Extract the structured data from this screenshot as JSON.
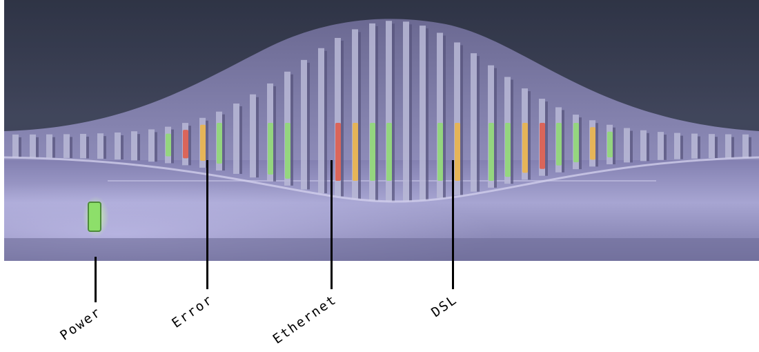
{
  "callouts": {
    "power": "Power",
    "error": "Error",
    "ethernet": "Ethernet",
    "dsl": "DSL"
  },
  "colors": {
    "led_green": "#8ddf6a",
    "led_amber": "#f2b53a",
    "led_red": "#e5533c",
    "housing": "#9a98c8",
    "grille": "#b9b8d6",
    "background_dark": "#3c3b56"
  }
}
